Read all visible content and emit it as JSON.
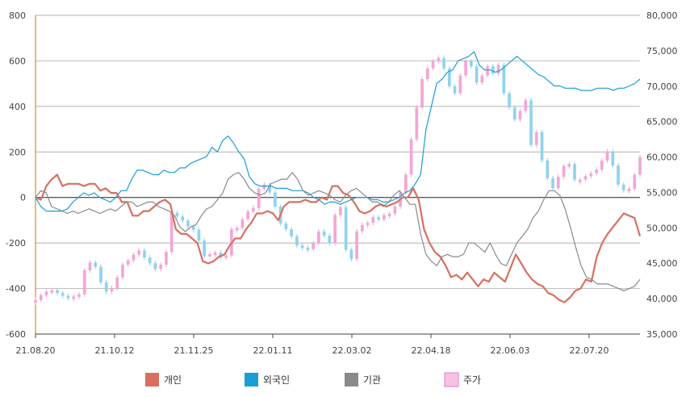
{
  "chart_data": {
    "type": "line",
    "title": "",
    "x_tick_labels": [
      "21.08.20",
      "21.10.12",
      "21.11.25",
      "22.01.11",
      "22.03.02",
      "22.04.18",
      "22.06.03",
      "22.07.20"
    ],
    "y_left": {
      "range": [
        -600,
        800
      ],
      "ticks": [
        -600,
        -400,
        -200,
        0,
        200,
        400,
        600,
        800
      ]
    },
    "y_right": {
      "range": [
        35000,
        80000
      ],
      "ticks": [
        "35,000",
        "40,000",
        "45,000",
        "50,000",
        "55,000",
        "60,000",
        "65,000",
        "70,000",
        "75,000",
        "80,000"
      ]
    },
    "grid": true,
    "legend_position": "bottom",
    "series": [
      {
        "name": "개인",
        "color": "#d9705f",
        "axis": "left",
        "values": [
          0,
          -10,
          50,
          80,
          100,
          50,
          60,
          60,
          60,
          50,
          60,
          60,
          30,
          40,
          20,
          20,
          -20,
          -20,
          -80,
          -80,
          -60,
          -60,
          -40,
          -20,
          -10,
          -30,
          -140,
          -160,
          -160,
          -180,
          -200,
          -280,
          -290,
          -280,
          -260,
          -250,
          -210,
          -180,
          -180,
          -140,
          -110,
          -70,
          -70,
          -60,
          -70,
          -100,
          -40,
          -20,
          -20,
          -20,
          -10,
          -20,
          -20,
          0,
          -10,
          50,
          50,
          20,
          10,
          -20,
          -60,
          -70,
          -60,
          -40,
          -30,
          -40,
          -30,
          -20,
          0,
          0,
          40,
          -10,
          -140,
          -200,
          -240,
          -260,
          -300,
          -350,
          -340,
          -360,
          -330,
          -360,
          -390,
          -360,
          -370,
          -330,
          -350,
          -370,
          -310,
          -250,
          -290,
          -330,
          -360,
          -380,
          -390,
          -420,
          -430,
          -450,
          -460,
          -440,
          -410,
          -400,
          -360,
          -370,
          -260,
          -200,
          -160,
          -130,
          -100,
          -70,
          -80,
          -90,
          -170
        ]
      },
      {
        "name": "외국인",
        "color": "#1a9ed8",
        "axis": "left",
        "values": [
          0,
          -40,
          -60,
          -60,
          -60,
          -60,
          -50,
          -20,
          0,
          20,
          10,
          20,
          0,
          -10,
          -20,
          0,
          30,
          30,
          80,
          120,
          120,
          110,
          100,
          100,
          120,
          110,
          110,
          130,
          130,
          150,
          160,
          170,
          180,
          220,
          200,
          250,
          270,
          240,
          200,
          170,
          90,
          60,
          50,
          50,
          50,
          40,
          40,
          40,
          30,
          30,
          30,
          20,
          0,
          -10,
          -30,
          -20,
          -20,
          -30,
          -20,
          -10,
          0,
          0,
          0,
          -10,
          -10,
          -20,
          -20,
          -10,
          0,
          20,
          30,
          60,
          100,
          300,
          400,
          500,
          520,
          550,
          560,
          600,
          610,
          620,
          640,
          580,
          560,
          560,
          550,
          560,
          580,
          600,
          620,
          600,
          580,
          560,
          540,
          530,
          510,
          490,
          490,
          480,
          480,
          480,
          470,
          470,
          470,
          480,
          480,
          480,
          470,
          480,
          480,
          490,
          500,
          520
        ]
      },
      {
        "name": "기관",
        "color": "#8a8a8a",
        "axis": "left",
        "values": [
          0,
          30,
          20,
          -40,
          -50,
          -60,
          -70,
          -60,
          -70,
          -60,
          -50,
          -60,
          -70,
          -60,
          -50,
          -60,
          -40,
          -20,
          -20,
          -40,
          -30,
          -20,
          -20,
          -40,
          -50,
          -60,
          -80,
          -130,
          -150,
          -130,
          -120,
          -80,
          -50,
          -40,
          -10,
          20,
          80,
          100,
          110,
          80,
          40,
          20,
          10,
          20,
          60,
          70,
          80,
          80,
          110,
          80,
          30,
          10,
          20,
          30,
          20,
          10,
          -10,
          -20,
          10,
          30,
          40,
          20,
          0,
          -20,
          -20,
          -40,
          -20,
          10,
          30,
          0,
          -30,
          -30,
          -160,
          -250,
          -280,
          -300,
          -260,
          -250,
          -260,
          -260,
          -250,
          -200,
          -200,
          -220,
          -240,
          -200,
          -250,
          -290,
          -300,
          -250,
          -200,
          -170,
          -140,
          -90,
          -60,
          -10,
          30,
          30,
          10,
          -50,
          -130,
          -220,
          -300,
          -350,
          -360,
          -380,
          -380,
          -380,
          -390,
          -400,
          -410,
          -400,
          -390,
          -360
        ]
      },
      {
        "name": "주가",
        "color": "#e87fc4",
        "axis": "right",
        "values": [
          39800,
          40500,
          41000,
          41200,
          40800,
          40400,
          40100,
          40300,
          40600,
          44000,
          45100,
          44500,
          42300,
          41000,
          41500,
          43000,
          44800,
          45400,
          46200,
          46800,
          45800,
          45000,
          44200,
          44800,
          46600,
          52100,
          51600,
          51000,
          50200,
          49700,
          48200,
          46000,
          46300,
          46500,
          45800,
          46100,
          49800,
          50000,
          51200,
          52300,
          52800,
          55500,
          56100,
          55000,
          53000,
          50600,
          49800,
          48800,
          47500,
          47200,
          47000,
          47800,
          49500,
          48900,
          47800,
          51800,
          52900,
          46900,
          45600,
          49500,
          50400,
          50700,
          51500,
          51200,
          51800,
          52000,
          53000,
          55000,
          57500,
          62500,
          67000,
          71000,
          72500,
          73500,
          74000,
          72500,
          70000,
          69000,
          71500,
          73500,
          72800,
          70500,
          71500,
          72800,
          71800,
          73000,
          69000,
          67000,
          65300,
          66500,
          68000,
          61700,
          63500,
          59500,
          57000,
          55600,
          57200,
          58700,
          59000,
          56800,
          56800,
          57300,
          57700,
          58200,
          59500,
          60800,
          58800,
          56100,
          55300,
          55500,
          57500,
          60000
        ]
      }
    ]
  }
}
